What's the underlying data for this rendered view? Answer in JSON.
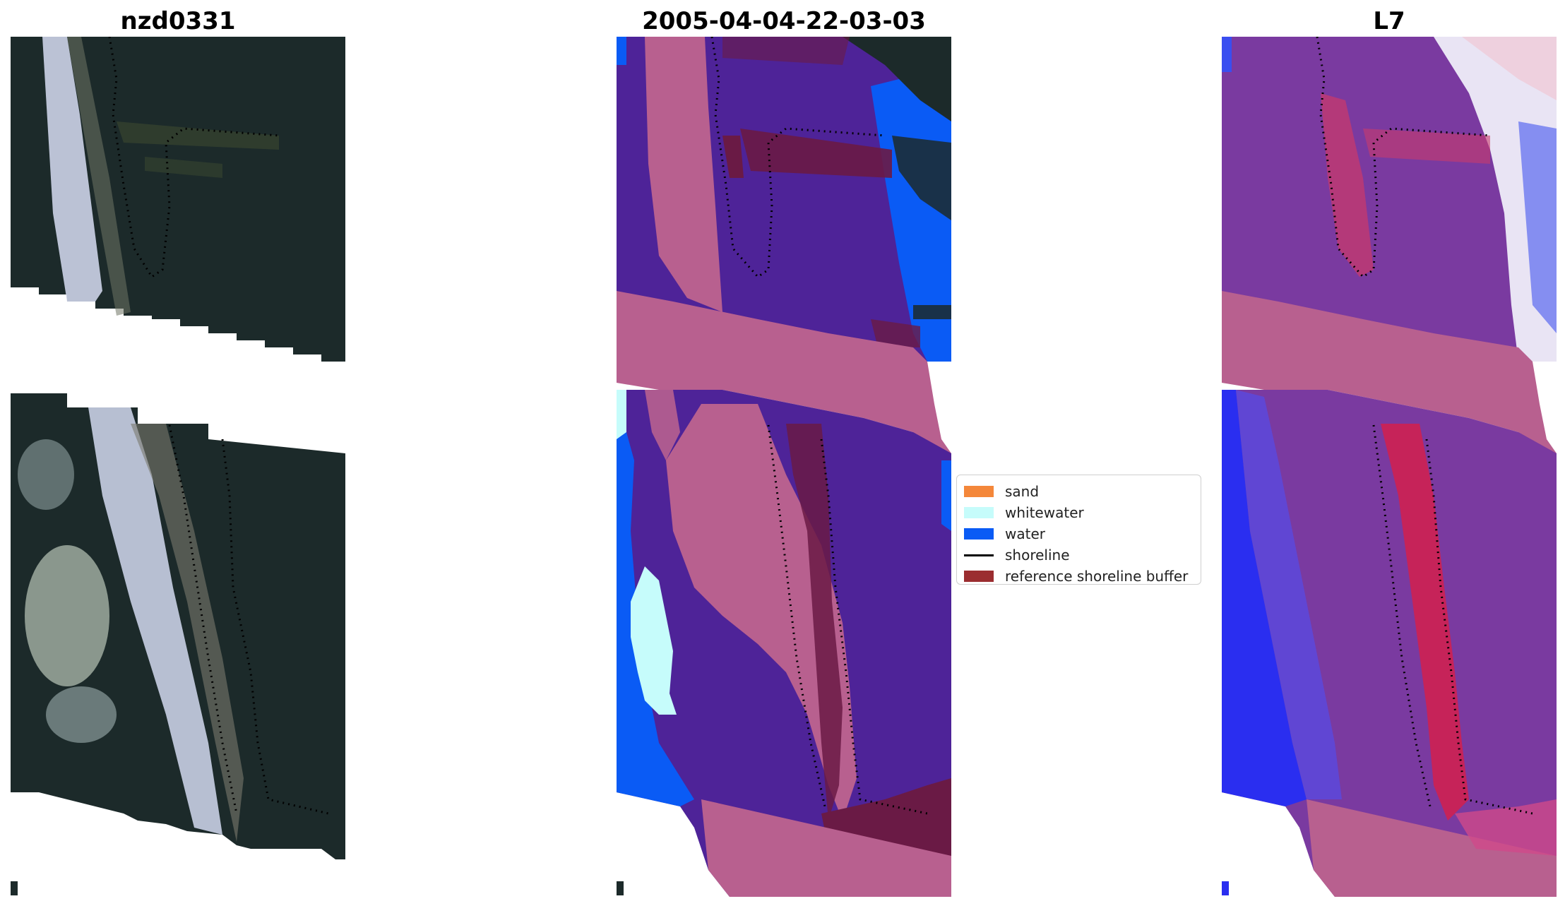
{
  "panels": {
    "rgb": {
      "title": "nzd0331"
    },
    "classified": {
      "title": "2005-04-04-22-03-03"
    },
    "index": {
      "title": "L7"
    }
  },
  "legend": {
    "items": [
      {
        "label": "sand",
        "color": "#f4873a",
        "kind": "patch"
      },
      {
        "label": "whitewater",
        "color": "#c6fcfb",
        "kind": "patch"
      },
      {
        "label": "water",
        "color": "#0a5bf5",
        "kind": "patch"
      },
      {
        "label": "shoreline",
        "color": "#000000",
        "kind": "line"
      },
      {
        "label": "reference shoreline buffer",
        "color": "#9b2d30",
        "kind": "patch"
      }
    ]
  },
  "colors": {
    "land_purple": "#4e2398",
    "buffer_pink": "#b8608f",
    "buffer_dark": "#6a1a45",
    "whitewater": "#c6fcfb",
    "water": "#0a5bf5",
    "rgb_dark": "#1c2a2a",
    "rgb_light": "#c9cfe4",
    "index_purple": "#7a3aa0",
    "index_red": "#d4204c",
    "index_blue": "#2a2ef0"
  }
}
